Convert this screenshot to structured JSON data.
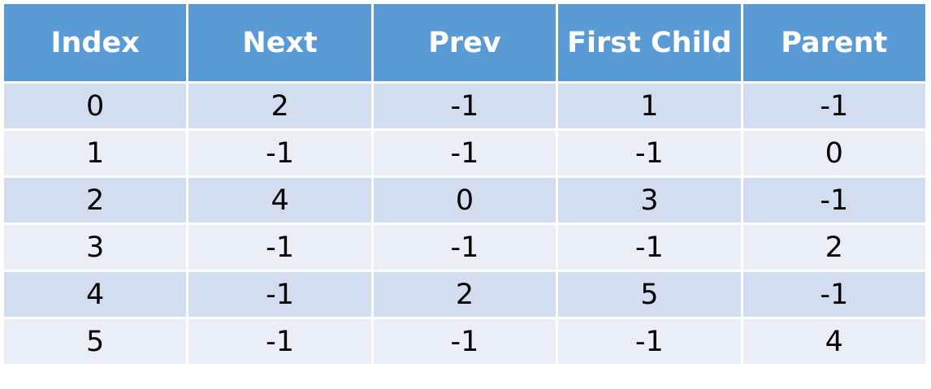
{
  "table": {
    "headers": [
      "Index",
      "Next",
      "Prev",
      "First Child",
      "Parent"
    ],
    "rows": [
      [
        "0",
        "2",
        "-1",
        "1",
        "-1"
      ],
      [
        "1",
        "-1",
        "-1",
        "-1",
        "0"
      ],
      [
        "2",
        "4",
        "0",
        "3",
        "-1"
      ],
      [
        "3",
        "-1",
        "-1",
        "-1",
        "2"
      ],
      [
        "4",
        "-1",
        "2",
        "5",
        "-1"
      ],
      [
        "5",
        "-1",
        "-1",
        "-1",
        "4"
      ]
    ]
  },
  "colors": {
    "header_bg": "#5b9bd5",
    "row_dark": "#d2deef",
    "row_light": "#eaeff7",
    "border": "#ffffff"
  }
}
